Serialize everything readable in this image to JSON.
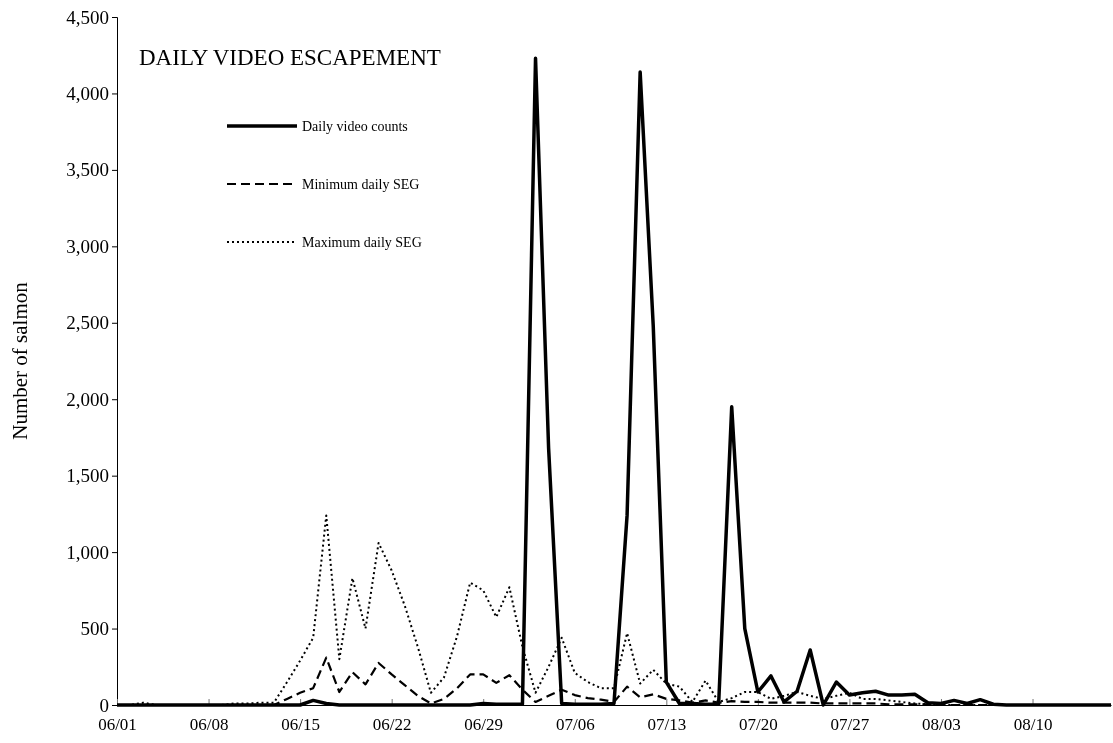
{
  "chart_data": {
    "type": "line",
    "title": "DAILY VIDEO ESCAPEMENT",
    "ylabel": "Number of salmon",
    "x": [
      "--06-01",
      "--06-02",
      "--06-03",
      "--06-04",
      "--06-05",
      "--06-06",
      "--06-07",
      "--06-08",
      "--06-09",
      "--06-10",
      "--06-11",
      "--06-12",
      "--06-13",
      "--06-14",
      "--06-15",
      "--06-16",
      "--06-17",
      "--06-18",
      "--06-19",
      "--06-20",
      "--06-21",
      "--06-22",
      "--06-23",
      "--06-24",
      "--06-25",
      "--06-26",
      "--06-27",
      "--06-28",
      "--06-29",
      "--06-30",
      "--07-01",
      "--07-02",
      "--07-03",
      "--07-04",
      "--07-05",
      "--07-06",
      "--07-07",
      "--07-08",
      "--07-09",
      "--07-10",
      "--07-11",
      "--07-12",
      "--07-13",
      "--07-14",
      "--07-15",
      "--07-16",
      "--07-17",
      "--07-18",
      "--07-19",
      "--07-20",
      "--07-21",
      "--07-22",
      "--07-23",
      "--07-24",
      "--07-25",
      "--07-26",
      "--07-27",
      "--07-28",
      "--07-29",
      "--07-30",
      "--07-31",
      "--08-01",
      "--08-02",
      "--08-03",
      "--08-04",
      "--08-05",
      "--08-06",
      "--08-07",
      "--08-08",
      "--08-09",
      "--08-10",
      "--08-11",
      "--08-12",
      "--08-13",
      "--08-14",
      "--08-15",
      "--08-16"
    ],
    "series": [
      {
        "name": "Daily video counts",
        "color": "#000000",
        "line_style": "solid",
        "values": [
          0,
          0,
          0,
          0,
          0,
          0,
          0,
          0,
          0,
          0,
          0,
          0,
          0,
          0,
          0,
          30,
          10,
          0,
          0,
          0,
          0,
          0,
          0,
          0,
          0,
          0,
          0,
          0,
          10,
          5,
          5,
          5,
          4230,
          1680,
          10,
          5,
          5,
          5,
          10,
          1240,
          4140,
          2480,
          150,
          10,
          10,
          5,
          5,
          1950,
          500,
          85,
          190,
          20,
          90,
          360,
          0,
          150,
          65,
          80,
          90,
          65,
          65,
          70,
          15,
          10,
          30,
          10,
          35,
          5,
          0,
          0,
          0,
          0,
          0,
          0,
          0,
          0,
          0
        ]
      },
      {
        "name": "Minimum daily SEG",
        "color": "#000000",
        "line_style": "dashed",
        "values": [
          0,
          0,
          0,
          0,
          0,
          0,
          0,
          0,
          0,
          0,
          0,
          0,
          0,
          40,
          80,
          110,
          310,
          85,
          215,
          135,
          275,
          200,
          130,
          60,
          10,
          40,
          110,
          200,
          200,
          145,
          195,
          100,
          20,
          60,
          100,
          65,
          45,
          35,
          20,
          120,
          50,
          70,
          40,
          30,
          15,
          30,
          15,
          25,
          20,
          20,
          15,
          15,
          15,
          15,
          10,
          10,
          10,
          10,
          10,
          5,
          5,
          5,
          5,
          0,
          0,
          0,
          0,
          0,
          0,
          0,
          0,
          0,
          0,
          0,
          0,
          0,
          0
        ]
      },
      {
        "name": "Maximum daily SEG",
        "color": "#000000",
        "line_style": "dotted",
        "values": [
          0,
          0,
          15,
          0,
          0,
          0,
          0,
          0,
          0,
          10,
          10,
          15,
          15,
          150,
          290,
          440,
          1240,
          300,
          830,
          500,
          1060,
          880,
          650,
          380,
          80,
          180,
          450,
          800,
          750,
          575,
          770,
          380,
          80,
          250,
          440,
          210,
          150,
          110,
          110,
          470,
          140,
          230,
          140,
          120,
          20,
          160,
          20,
          45,
          85,
          85,
          40,
          60,
          85,
          60,
          40,
          60,
          80,
          40,
          40,
          30,
          20,
          10,
          5,
          0,
          0,
          0,
          0,
          0,
          0,
          0,
          0,
          0,
          0,
          0,
          0,
          0,
          0
        ]
      }
    ],
    "xlim": [
      "--06-01",
      "--08-16"
    ],
    "xticks": [
      {
        "value": "--06-01",
        "label": "06/01"
      },
      {
        "value": "--06-08",
        "label": "06/08"
      },
      {
        "value": "--06-15",
        "label": "06/15"
      },
      {
        "value": "--06-22",
        "label": "06/22"
      },
      {
        "value": "--06-29",
        "label": "06/29"
      },
      {
        "value": "--07-06",
        "label": "07/06"
      },
      {
        "value": "--07-13",
        "label": "07/13"
      },
      {
        "value": "--07-20",
        "label": "07/20"
      },
      {
        "value": "--07-27",
        "label": "07/27"
      },
      {
        "value": "--08-03",
        "label": "08/03"
      },
      {
        "value": "--08-10",
        "label": "08/10"
      }
    ],
    "ylim": [
      0,
      4500
    ],
    "yticks": [
      0,
      500,
      {
        "value": 1000,
        "label": "1,000"
      },
      {
        "value": 1500,
        "label": "1,500"
      },
      {
        "value": 2000,
        "label": "2,000"
      },
      {
        "value": 2500,
        "label": "2,500"
      },
      {
        "value": 3000,
        "label": "3,000"
      },
      {
        "value": 3500,
        "label": "3,500"
      },
      {
        "value": 4000,
        "label": "4,000"
      },
      {
        "value": 4500,
        "label": "4,500"
      }
    ],
    "grid": false,
    "legend": "top left",
    "marker": "none"
  }
}
